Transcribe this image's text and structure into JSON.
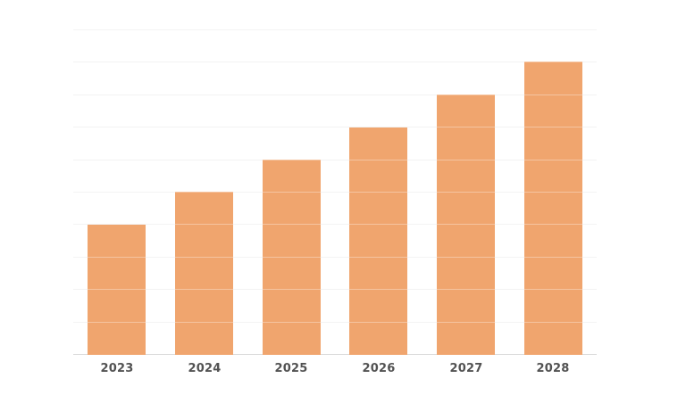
{
  "chart_data": {
    "type": "bar",
    "title": "",
    "xlabel": "",
    "ylabel": "",
    "categories": [
      "2023",
      "2024",
      "2025",
      "2026",
      "2027",
      "2028"
    ],
    "values": [
      4,
      5,
      6,
      7,
      8,
      9
    ],
    "ylim": [
      0,
      10
    ],
    "gridline_interval": 1,
    "gridline_count": 11,
    "y_tick_labels_visible": false,
    "legend": "none",
    "grid": "horizontal",
    "colors": {
      "bar": "#f0a56e",
      "gridline": "#ededed",
      "baseline": "#d9d9d9",
      "tick_label": "#525252",
      "background": "#ffffff"
    }
  }
}
